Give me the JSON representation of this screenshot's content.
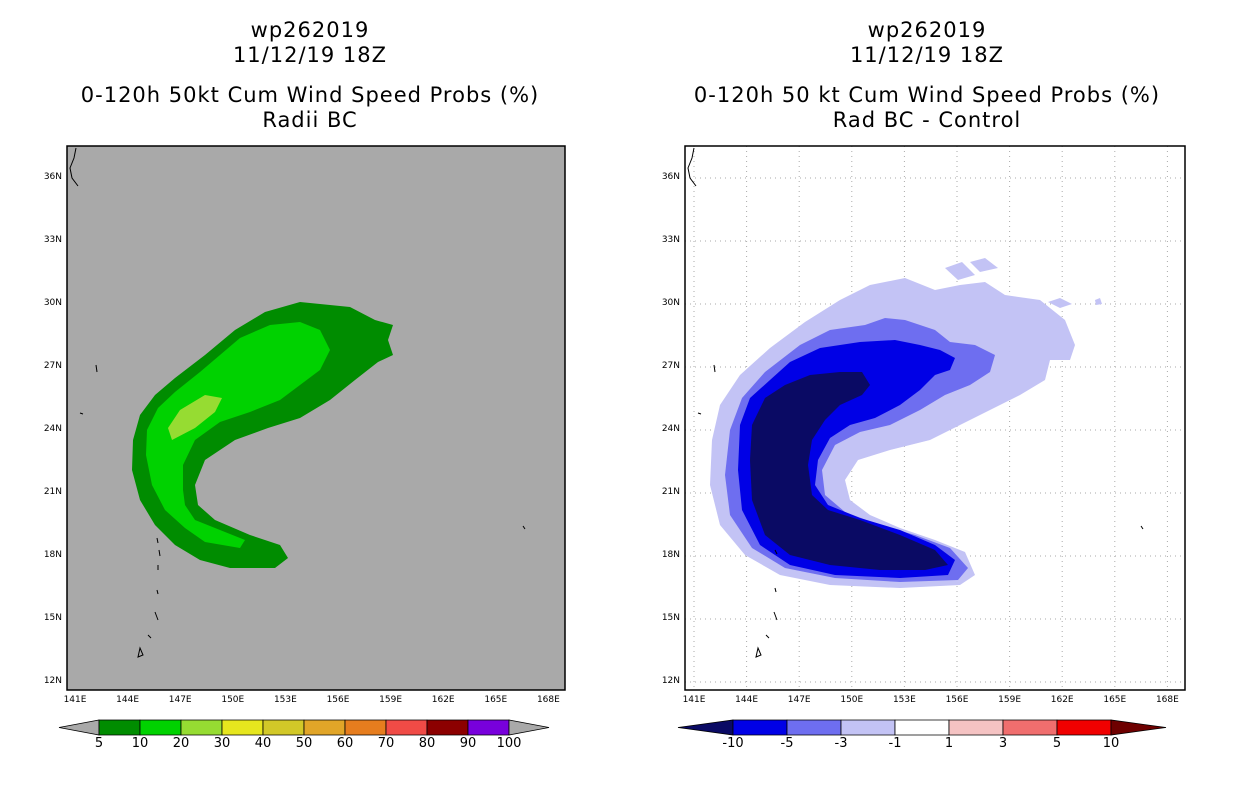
{
  "left_panel": {
    "title_line1": "wp262019",
    "title_line2": "11/12/19 18Z",
    "title_line3": "0-120h 50kt Cum Wind Speed Probs (%)",
    "title_line4": "Radii BC",
    "background_color": "#a9a9a9",
    "colorbar": {
      "labels": [
        "5",
        "10",
        "20",
        "30",
        "40",
        "50",
        "60",
        "70",
        "80",
        "90",
        "100"
      ],
      "colors": [
        "#008c00",
        "#00d200",
        "#96dc32",
        "#e6e61e",
        "#d2c828",
        "#e1a528",
        "#e67d1e",
        "#f04b46",
        "#8c0000",
        "#7800dc"
      ],
      "end_color": "#a9a9a9"
    }
  },
  "right_panel": {
    "title_line1": "wp262019",
    "title_line2": "11/12/19 18Z",
    "title_line3": "0-120h 50 kt Cum Wind Speed Probs (%)",
    "title_line4": "Rad BC - Control",
    "colorbar": {
      "labels": [
        "-10",
        "-5",
        "-3",
        "-1",
        "1",
        "3",
        "5",
        "10"
      ],
      "colors": [
        "#0000e6",
        "#6e6ef0",
        "#c3c3f5",
        "#ffffff",
        "#f5c3c3",
        "#f06e6e",
        "#f00000"
      ],
      "low_color": "#0a0a64",
      "high_color": "#6e0000"
    }
  },
  "map": {
    "lat_labels": [
      "36N",
      "33N",
      "30N",
      "27N",
      "24N",
      "21N",
      "18N",
      "15N",
      "12N"
    ],
    "lon_labels": [
      "141E",
      "144E",
      "147E",
      "150E",
      "153E",
      "156E",
      "159E",
      "162E",
      "165E",
      "168E"
    ]
  },
  "colors": {
    "prob_5": "#008c00",
    "prob_10": "#00d200",
    "prob_20": "#96dc32",
    "diff_light": "#c3c3f5",
    "diff_mid": "#6e6ef0",
    "diff_strong": "#0000e6",
    "diff_max": "#0a0a64"
  }
}
